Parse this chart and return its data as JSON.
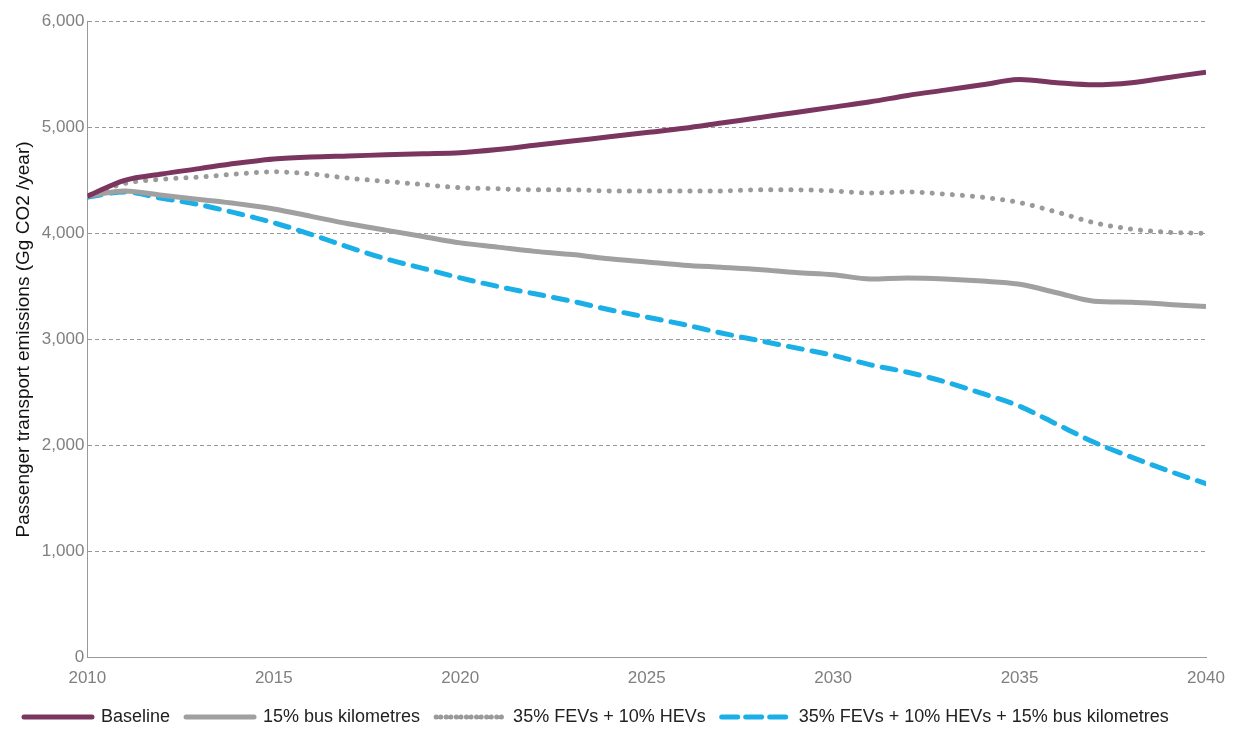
{
  "chart_data": {
    "type": "line",
    "ylabel": "Passenger transport emissions (Gg CO2 /year)",
    "x": [
      2010,
      2011,
      2012,
      2013,
      2014,
      2015,
      2016,
      2017,
      2018,
      2019,
      2020,
      2021,
      2022,
      2023,
      2024,
      2025,
      2026,
      2027,
      2028,
      2029,
      2030,
      2031,
      2032,
      2033,
      2034,
      2035,
      2036,
      2037,
      2038,
      2039,
      2040
    ],
    "xlim": [
      2010,
      2040
    ],
    "xticks": [
      2010,
      2015,
      2020,
      2025,
      2030,
      2035,
      2040
    ],
    "ylim": [
      0,
      6000
    ],
    "yticks": [
      0,
      {
        "value": 1000,
        "label": "1,000"
      },
      {
        "value": 2000,
        "label": "2,000"
      },
      {
        "value": 3000,
        "label": "3,000"
      },
      {
        "value": 4000,
        "label": "4,000"
      },
      {
        "value": 5000,
        "label": "5,000"
      },
      {
        "value": 6000,
        "label": "6,000"
      }
    ],
    "grid": "y",
    "legend": "bottom",
    "marker": "none",
    "series": [
      {
        "name": "Baseline",
        "color": "#7b3660",
        "line_style": "solid",
        "values": [
          4350,
          4500,
          4560,
          4610,
          4660,
          4700,
          4720,
          4730,
          4740,
          4750,
          4760,
          4790,
          4830,
          4870,
          4910,
          4950,
          4990,
          5040,
          5090,
          5140,
          5190,
          5240,
          5300,
          5350,
          5400,
          5450,
          5420,
          5400,
          5420,
          5470,
          5520
        ]
      },
      {
        "name": "15% bus kilometres",
        "color": "#a0a0a0",
        "line_style": "solid",
        "values": [
          4350,
          4400,
          4360,
          4320,
          4280,
          4230,
          4160,
          4090,
          4030,
          3970,
          3910,
          3870,
          3830,
          3800,
          3760,
          3730,
          3700,
          3680,
          3660,
          3630,
          3610,
          3570,
          3580,
          3570,
          3550,
          3520,
          3440,
          3360,
          3350,
          3330,
          3310
        ]
      },
      {
        "name": "35% FEVs + 10% HEVs",
        "color": "#9a9a9a",
        "line_style": "dotted",
        "values": [
          4350,
          4470,
          4510,
          4530,
          4560,
          4580,
          4560,
          4520,
          4490,
          4460,
          4430,
          4420,
          4410,
          4410,
          4400,
          4400,
          4400,
          4400,
          4410,
          4410,
          4400,
          4380,
          4390,
          4370,
          4340,
          4290,
          4200,
          4100,
          4040,
          4010,
          4000
        ]
      },
      {
        "name": "35% FEVs + 10% HEVs + 15% bus kilometres",
        "color": "#1aafe6",
        "line_style": "dashed",
        "values": [
          4340,
          4390,
          4330,
          4270,
          4190,
          4100,
          3990,
          3870,
          3760,
          3670,
          3580,
          3500,
          3430,
          3360,
          3280,
          3210,
          3140,
          3060,
          2990,
          2920,
          2850,
          2760,
          2690,
          2600,
          2490,
          2370,
          2200,
          2030,
          1890,
          1760,
          1640
        ]
      }
    ]
  }
}
